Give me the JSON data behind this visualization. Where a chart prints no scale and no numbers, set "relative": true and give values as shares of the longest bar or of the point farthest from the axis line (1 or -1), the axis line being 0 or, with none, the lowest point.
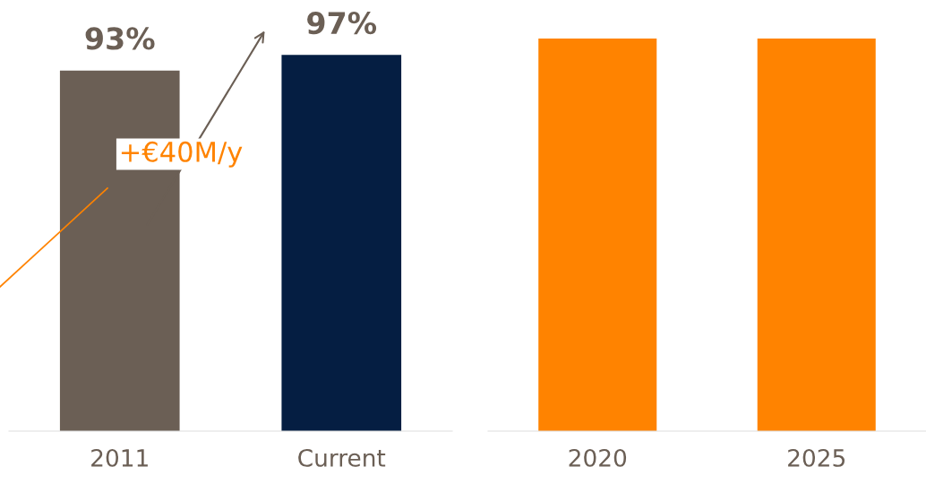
{
  "chart_data": [
    {
      "type": "bar",
      "categories": [
        "2011",
        "Current"
      ],
      "values": [
        93,
        97
      ],
      "colors": [
        "#6b5f55",
        "#051e42"
      ],
      "value_labels": [
        "93%",
        "97%"
      ],
      "tick_labels": "x",
      "annotations": [
        "+€40M/y"
      ]
    },
    {
      "type": "bar",
      "categories": [
        "2020",
        "2025"
      ],
      "values": [
        1,
        1
      ],
      "colors": [
        "#ff8300",
        "#ff8300"
      ],
      "relative": true,
      "tick_labels": "x"
    }
  ]
}
